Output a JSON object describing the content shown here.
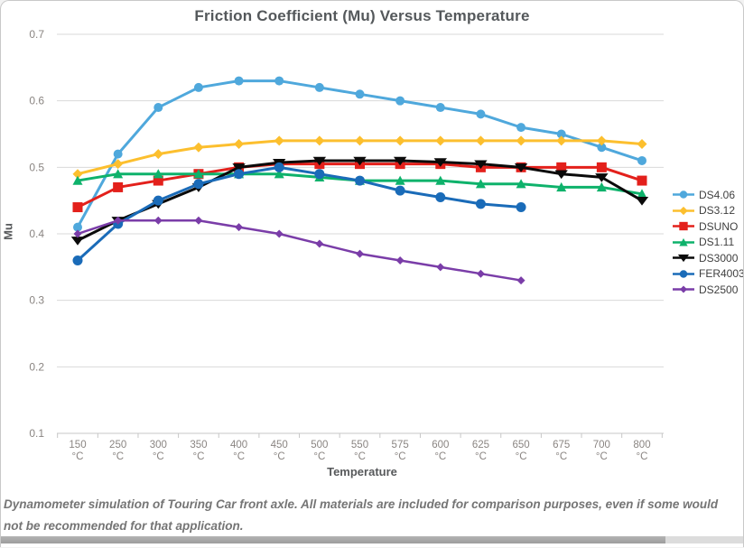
{
  "page": {
    "caption": "Dynamometer simulation of Touring Car front axle. All materials are included for comparison purposes, even if some would not be recommended for that application."
  },
  "chart_data": {
    "type": "line",
    "title": "Friction Coefficient (Mu) Versus Temperature",
    "xlabel": "Temperature",
    "ylabel": "Mu",
    "x_unit": "°C",
    "categories": [
      "150",
      "250",
      "300",
      "350",
      "400",
      "450",
      "500",
      "550",
      "575",
      "600",
      "625",
      "650",
      "675",
      "700",
      "800"
    ],
    "y_ticks": [
      "0.7",
      "0.6",
      "0.5",
      "0.4",
      "0.3",
      "0.2",
      "0.1"
    ],
    "ylim": [
      0.1,
      0.7
    ],
    "grid": true,
    "legend_position": "right",
    "series": [
      {
        "name": "DS4.06",
        "color": "#4FA8DC",
        "marker": "circle",
        "values": [
          0.41,
          0.52,
          0.59,
          0.62,
          0.63,
          0.63,
          0.62,
          0.61,
          0.6,
          0.59,
          0.58,
          0.56,
          0.55,
          0.53,
          0.51
        ]
      },
      {
        "name": "DS3.12",
        "color": "#FCBF2E",
        "marker": "diamond",
        "values": [
          0.49,
          0.505,
          0.52,
          0.53,
          0.535,
          0.54,
          0.54,
          0.54,
          0.54,
          0.54,
          0.54,
          0.54,
          0.54,
          0.54,
          0.535
        ]
      },
      {
        "name": "DSUNO",
        "color": "#E3201B",
        "marker": "square",
        "values": [
          0.44,
          0.47,
          0.48,
          0.49,
          0.5,
          0.505,
          0.505,
          0.505,
          0.505,
          0.505,
          0.5,
          0.5,
          0.5,
          0.5,
          0.48
        ]
      },
      {
        "name": "DS1.11",
        "color": "#0EB26B",
        "marker": "triangle-up",
        "values": [
          0.48,
          0.49,
          0.49,
          0.49,
          0.49,
          0.49,
          0.485,
          0.48,
          0.48,
          0.48,
          0.475,
          0.475,
          0.47,
          0.47,
          0.46
        ]
      },
      {
        "name": "DS3000",
        "color": "#0A0A0A",
        "marker": "triangle-down",
        "values": [
          0.39,
          0.42,
          0.445,
          0.47,
          0.5,
          0.507,
          0.51,
          0.51,
          0.51,
          0.508,
          0.505,
          0.5,
          0.49,
          0.485,
          0.45
        ]
      },
      {
        "name": "FER4003",
        "color": "#1A6BB8",
        "marker": "circle",
        "values": [
          0.36,
          0.415,
          0.45,
          0.475,
          0.49,
          0.5,
          0.49,
          0.48,
          0.465,
          0.455,
          0.445,
          0.44,
          null,
          null,
          null
        ]
      },
      {
        "name": "DS2500",
        "color": "#7A3DA8",
        "marker": "diamond",
        "values": [
          0.4,
          0.42,
          0.42,
          0.42,
          0.41,
          0.4,
          0.385,
          0.37,
          0.36,
          0.35,
          0.34,
          0.33,
          null,
          null,
          null
        ]
      }
    ]
  }
}
